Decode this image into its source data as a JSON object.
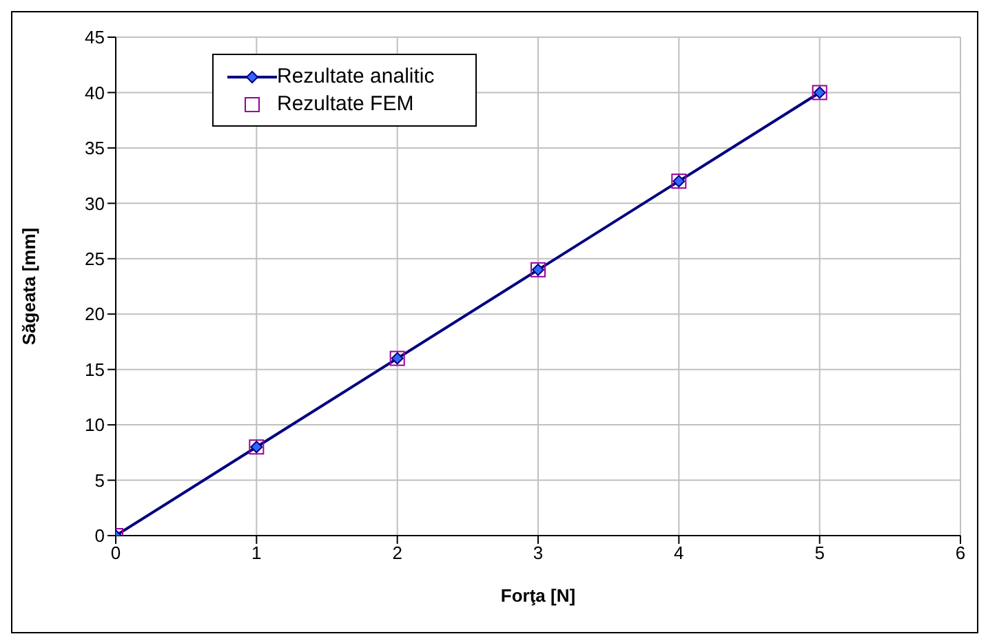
{
  "chart_data": {
    "type": "line",
    "xlabel": "Forţa [N]",
    "ylabel": "Săgeata [mm]",
    "x": [
      0,
      1,
      2,
      3,
      4,
      5
    ],
    "series": [
      {
        "name": "Rezultate analitic",
        "type": "line",
        "color": "#000080",
        "marker": "diamond",
        "values": [
          0,
          8,
          16,
          24,
          32,
          40
        ]
      },
      {
        "name": "Rezultate FEM",
        "type": "scatter",
        "color": "#990099",
        "marker": "square",
        "values": [
          0,
          8,
          16,
          24,
          32,
          40
        ]
      }
    ],
    "xlim": [
      0,
      6
    ],
    "xticks": [
      0,
      1,
      2,
      3,
      4,
      5,
      6
    ],
    "ylim": [
      0,
      45
    ],
    "yticks": [
      0,
      5,
      10,
      15,
      20,
      25,
      30,
      35,
      40,
      45
    ],
    "grid": true,
    "legend": "top left"
  }
}
